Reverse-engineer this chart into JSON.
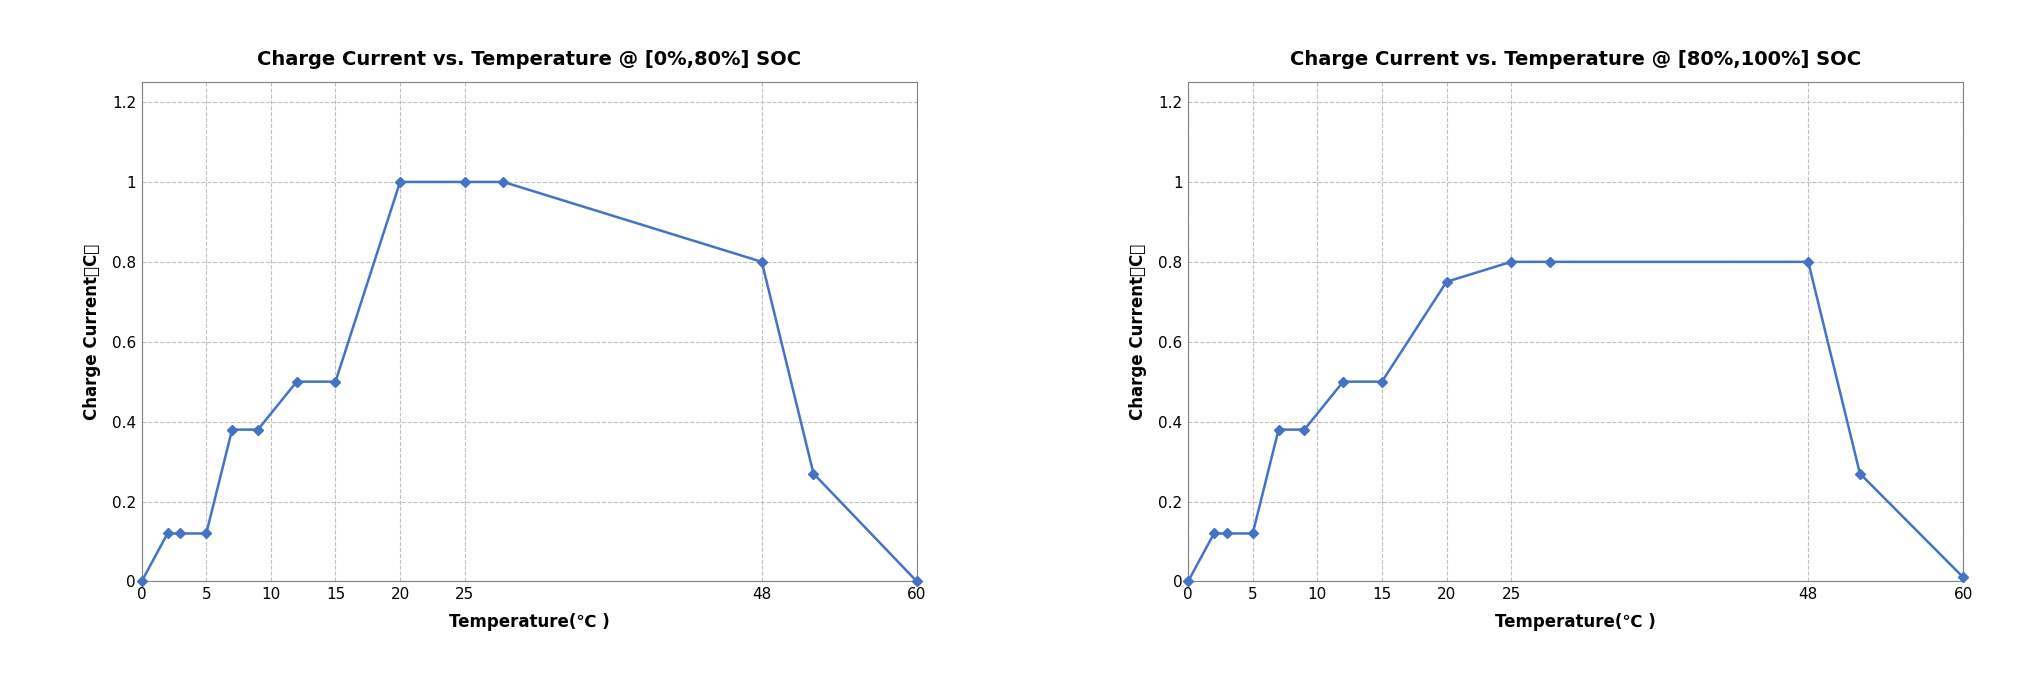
{
  "chart1": {
    "title": "Charge Current vs. Temperature @ [0%,80%] SOC",
    "x": [
      0,
      2,
      3,
      5,
      7,
      9,
      12,
      15,
      20,
      25,
      28,
      48,
      52,
      60
    ],
    "y": [
      0,
      0.12,
      0.12,
      0.12,
      0.38,
      0.38,
      0.5,
      0.5,
      1.0,
      1.0,
      1.0,
      0.8,
      0.27,
      0.0
    ],
    "xticks": [
      0,
      5,
      10,
      15,
      20,
      25,
      48,
      60
    ],
    "yticks": [
      0,
      0.2,
      0.4,
      0.6,
      0.8,
      1.0,
      1.2
    ],
    "xlabel": "Temperature(℃ )",
    "ylabel": "Charge Current（C）",
    "xlim": [
      0,
      60
    ],
    "ylim": [
      0,
      1.25
    ]
  },
  "chart2": {
    "title": "Charge Current vs. Temperature @ [80%,100%] SOC",
    "x": [
      0,
      2,
      3,
      5,
      7,
      9,
      12,
      15,
      20,
      25,
      28,
      48,
      52,
      60
    ],
    "y": [
      0,
      0.12,
      0.12,
      0.12,
      0.38,
      0.38,
      0.5,
      0.5,
      0.75,
      0.8,
      0.8,
      0.8,
      0.27,
      0.01
    ],
    "xticks": [
      0,
      5,
      10,
      15,
      20,
      25,
      48,
      60
    ],
    "yticks": [
      0,
      0.2,
      0.4,
      0.6,
      0.8,
      1.0,
      1.2
    ],
    "xlabel": "Temperature(℃ )",
    "ylabel": "Charge Current（C）",
    "xlim": [
      0,
      60
    ],
    "ylim": [
      0,
      1.25
    ]
  },
  "line_color": "#4472C4",
  "marker": "D",
  "marker_size": 5,
  "line_width": 1.8,
  "grid_color": "#C0C0C0",
  "bg_color": "#FFFFFF",
  "title_fontsize": 14,
  "label_fontsize": 12,
  "tick_fontsize": 11,
  "fig_bg": "#FFFFFF"
}
